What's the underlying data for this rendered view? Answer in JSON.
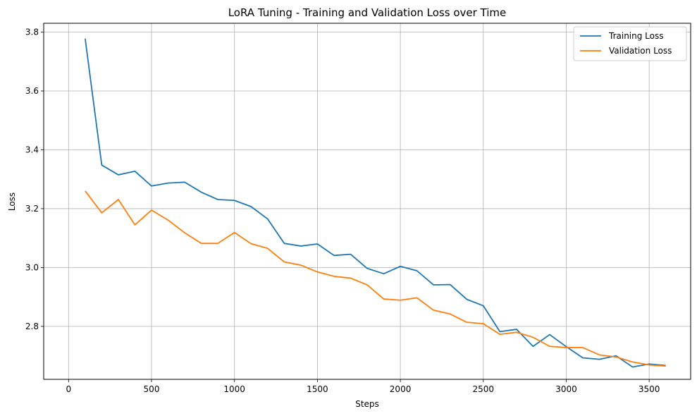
{
  "chart_data": {
    "type": "line",
    "title": "LoRA Tuning - Training and Validation Loss over Time",
    "xlabel": "Steps",
    "ylabel": "Loss",
    "xlim": [
      -150,
      3750
    ],
    "ylim": [
      2.62,
      3.83
    ],
    "xticks": [
      0,
      500,
      1000,
      1500,
      2000,
      2500,
      3000,
      3500
    ],
    "yticks": [
      2.8,
      3.0,
      3.2,
      3.4,
      3.6,
      3.8
    ],
    "ytick_labels": [
      "2.8",
      "3.0",
      "3.2",
      "3.4",
      "3.6",
      "3.8"
    ],
    "grid": true,
    "legend_position": "top-right",
    "x": [
      100,
      200,
      300,
      400,
      500,
      600,
      700,
      800,
      900,
      1000,
      1100,
      1200,
      1300,
      1400,
      1500,
      1600,
      1700,
      1800,
      1900,
      2000,
      2100,
      2200,
      2300,
      2400,
      2500,
      2600,
      2700,
      2800,
      2900,
      3000,
      3100,
      3200,
      3300,
      3400,
      3500,
      3600
    ],
    "series": [
      {
        "name": "Training Loss",
        "color": "#1f77b4",
        "values": [
          3.778,
          3.348,
          3.315,
          3.327,
          3.277,
          3.287,
          3.29,
          3.256,
          3.231,
          3.228,
          3.207,
          3.165,
          3.082,
          3.073,
          3.08,
          3.041,
          3.045,
          2.997,
          2.979,
          3.004,
          2.989,
          2.941,
          2.942,
          2.892,
          2.87,
          2.782,
          2.79,
          2.732,
          2.772,
          2.731,
          2.693,
          2.688,
          2.7,
          2.662,
          2.672,
          2.667
        ]
      },
      {
        "name": "Validation Loss",
        "color": "#ff7f0e",
        "values": [
          3.26,
          3.186,
          3.231,
          3.145,
          3.195,
          3.161,
          3.118,
          3.082,
          3.082,
          3.119,
          3.081,
          3.065,
          3.019,
          3.008,
          2.985,
          2.97,
          2.964,
          2.941,
          2.893,
          2.889,
          2.897,
          2.855,
          2.842,
          2.814,
          2.809,
          2.773,
          2.78,
          2.763,
          2.732,
          2.728,
          2.728,
          2.703,
          2.696,
          2.679,
          2.669,
          2.665
        ]
      }
    ]
  }
}
